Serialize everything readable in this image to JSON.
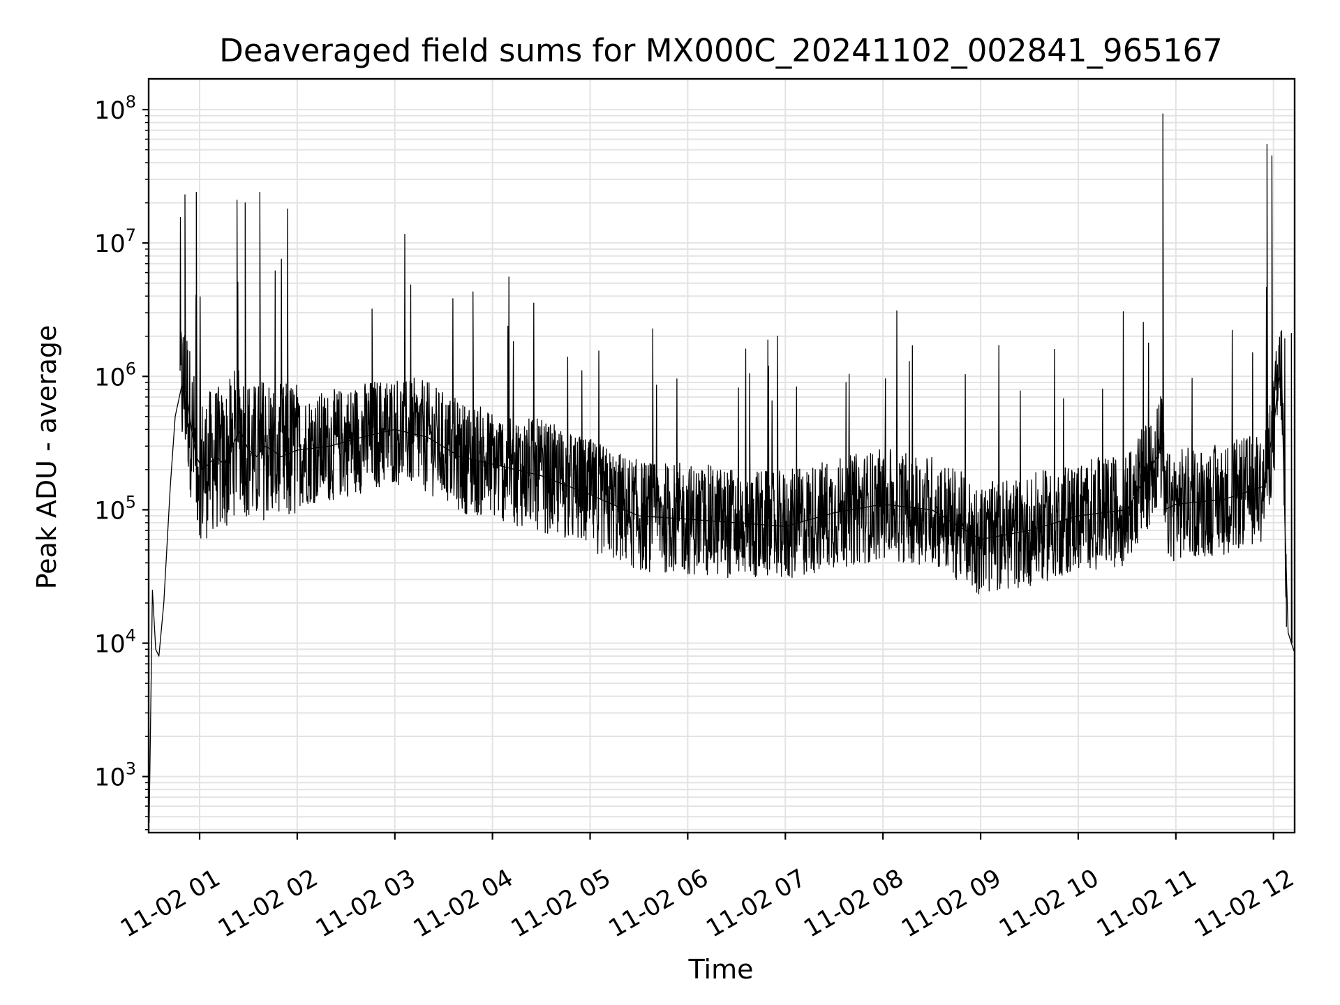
{
  "chart_data": {
    "type": "line",
    "title": "Deaveraged field sums for MX000C_20241102_002841_965167",
    "xlabel": "Time",
    "ylabel": "Peak ADU - average",
    "x_range": [
      "2024-11-02 00:28:41",
      "2024-11-02 12:13:00"
    ],
    "xlim": [
      "2024-11-02 00:28:41",
      "2024-11-02 12:13:00"
    ],
    "yscale": "log",
    "ylim": [
      380,
      170000000
    ],
    "x_ticks": [
      "11-02 01",
      "11-02 02",
      "11-02 03",
      "11-02 04",
      "11-02 05",
      "11-02 06",
      "11-02 07",
      "11-02 08",
      "11-02 09",
      "11-02 10",
      "11-02 11",
      "11-02 12"
    ],
    "x_tick_times": [
      "2024-11-02 01:00",
      "2024-11-02 02:00",
      "2024-11-02 03:00",
      "2024-11-02 04:00",
      "2024-11-02 05:00",
      "2024-11-02 06:00",
      "2024-11-02 07:00",
      "2024-11-02 08:00",
      "2024-11-02 09:00",
      "2024-11-02 10:00",
      "2024-11-02 11:00",
      "2024-11-02 12:00"
    ],
    "y_ticks": [
      {
        "value": 1000,
        "base": "10",
        "exp": "3"
      },
      {
        "value": 10000,
        "base": "10",
        "exp": "4"
      },
      {
        "value": 100000,
        "base": "10",
        "exp": "5"
      },
      {
        "value": 1000000,
        "base": "10",
        "exp": "6"
      },
      {
        "value": 10000000,
        "base": "10",
        "exp": "7"
      },
      {
        "value": 100000000,
        "base": "10",
        "exp": "8"
      }
    ],
    "grid": true,
    "minor_grid": true,
    "legend": "none",
    "line_color": "#000000",
    "series": [
      {
        "x": [
          "2024-11-02 00:29",
          "2024-11-02 00:31",
          "2024-11-02 00:33",
          "2024-11-02 00:35",
          "2024-11-02 00:38",
          "2024-11-02 00:42",
          "2024-11-02 00:45",
          "2024-11-02 00:49",
          "2024-11-02 00:52",
          "2024-11-02 00:55",
          "2024-11-02 00:58",
          "2024-11-02 01:02",
          "2024-11-02 01:10",
          "2024-11-02 01:15",
          "2024-11-02 01:20",
          "2024-11-02 01:25",
          "2024-11-02 01:30",
          "2024-11-02 01:35",
          "2024-11-02 01:40",
          "2024-11-02 01:45",
          "2024-11-02 01:50",
          "2024-11-02 02:00",
          "2024-11-02 02:20",
          "2024-11-02 02:40",
          "2024-11-02 03:00",
          "2024-11-02 03:20",
          "2024-11-02 03:40",
          "2024-11-02 04:00",
          "2024-11-02 04:30",
          "2024-11-02 05:00",
          "2024-11-02 05:30",
          "2024-11-02 06:00",
          "2024-11-02 06:30",
          "2024-11-02 07:00",
          "2024-11-02 07:30",
          "2024-11-02 08:00",
          "2024-11-02 08:30",
          "2024-11-02 09:00",
          "2024-11-02 09:30",
          "2024-11-02 10:00",
          "2024-11-02 10:30",
          "2024-11-02 10:52",
          "2024-11-02 10:53",
          "2024-11-02 11:00",
          "2024-11-02 11:30",
          "2024-11-02 11:54",
          "2024-11-02 11:57",
          "2024-11-02 12:00",
          "2024-11-02 12:03",
          "2024-11-02 12:05",
          "2024-11-02 12:07",
          "2024-11-02 12:09",
          "2024-11-02 12:11",
          "2024-11-02 12:13"
        ],
        "y": [
          450,
          25000,
          9000,
          8000,
          20000,
          150000,
          500000,
          850000,
          750000,
          400000,
          250000,
          200000,
          250000,
          220000,
          300000,
          400000,
          280000,
          250000,
          300000,
          280000,
          250000,
          280000,
          300000,
          350000,
          400000,
          350000,
          250000,
          220000,
          180000,
          130000,
          90000,
          85000,
          80000,
          75000,
          95000,
          110000,
          100000,
          60000,
          70000,
          90000,
          100000,
          300000,
          100000,
          110000,
          120000,
          150000,
          250000,
          400000,
          900000,
          1100000,
          80000,
          12000,
          10000,
          8500
        ]
      }
    ],
    "spikes": [
      {
        "x": "2024-11-02 00:51",
        "y": 23000000
      },
      {
        "x": "2024-11-02 00:58",
        "y": 24000000
      },
      {
        "x": "2024-11-02 01:23",
        "y": 21000000
      },
      {
        "x": "2024-11-02 01:28",
        "y": 20000000
      },
      {
        "x": "2024-11-02 01:37",
        "y": 24000000
      },
      {
        "x": "2024-11-02 01:54",
        "y": 18000000
      },
      {
        "x": "2024-11-02 02:46",
        "y": 3200000
      },
      {
        "x": "2024-11-02 03:48",
        "y": 4300000
      },
      {
        "x": "2024-11-02 06:38",
        "y": 1050000
      },
      {
        "x": "2024-11-02 10:52",
        "y": 93000000
      },
      {
        "x": "2024-11-02 11:56",
        "y": 55000000
      },
      {
        "x": "2024-11-02 11:59",
        "y": 45000000
      },
      {
        "x": "2024-11-02 12:11",
        "y": 2100000
      }
    ]
  }
}
